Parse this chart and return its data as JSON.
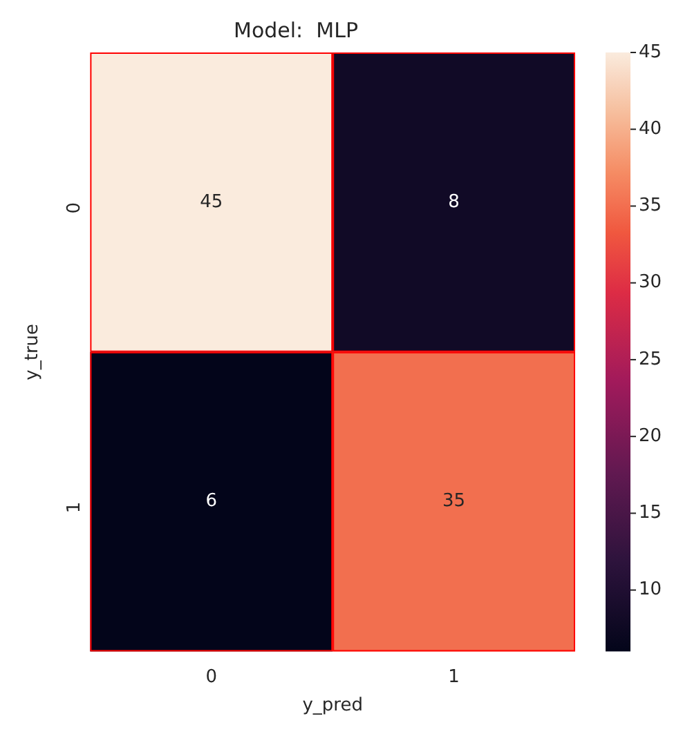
{
  "chart_data": {
    "type": "heatmap",
    "title": "Model:  MLP",
    "xlabel": "y_pred",
    "ylabel": "y_true",
    "categories": [
      "0",
      "1"
    ],
    "y_categories": [
      "0",
      "1"
    ],
    "cells": [
      [
        45,
        8
      ],
      [
        6,
        35
      ]
    ],
    "data_labels": true,
    "clim": [
      6,
      45
    ],
    "cticks": [
      10,
      15,
      20,
      25,
      30,
      35,
      40,
      45
    ]
  }
}
